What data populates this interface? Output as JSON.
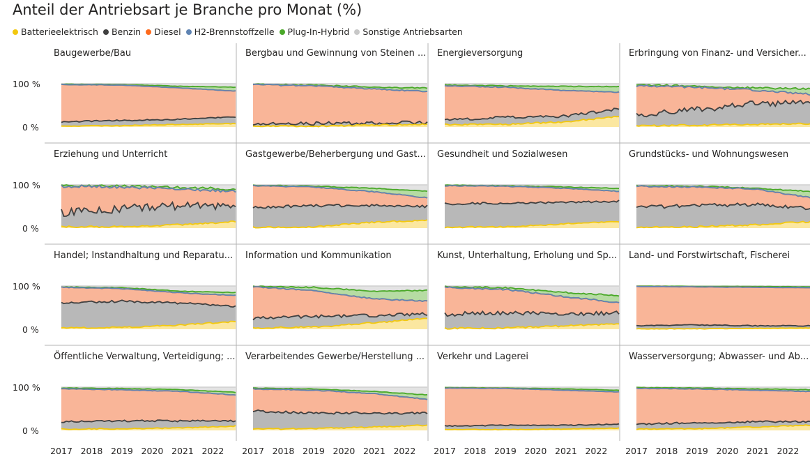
{
  "title": "Anteil der Antriebsart je Branche pro Monat (%)",
  "colors": {
    "Batterieelektrisch": "#F2C80F",
    "Benzin": "#404040",
    "Diesel": "#FE6A1C",
    "H2-Brennstoffzelle": "#5F84B3",
    "Plug-In-Hybrid": "#4AA829",
    "Sonstige Antriebsarten": "#C8C8C8"
  },
  "legend": [
    {
      "label": "Batterieelektrisch",
      "color": "#F2C80F"
    },
    {
      "label": "Benzin",
      "color": "#404040"
    },
    {
      "label": "Diesel",
      "color": "#FE6A1C"
    },
    {
      "label": "H2-Brennstoffzelle",
      "color": "#5F84B3"
    },
    {
      "label": "Plug-In-Hybrid",
      "color": "#4AA829"
    },
    {
      "label": "Sonstige Antriebsarten",
      "color": "#C8C8C8"
    }
  ],
  "y_tick_labels": [
    "100 %",
    "0 %"
  ],
  "x_tick_labels": [
    "2017",
    "2018",
    "2019",
    "2020",
    "2021",
    "2022"
  ],
  "chart_data": {
    "type": "area",
    "subtype": "small-multiples, 100% stacked area by month",
    "title": "Anteil der Antriebsart je Branche pro Monat (%)",
    "series_names": [
      "Batterieelektrisch",
      "Benzin",
      "Diesel",
      "H2-Brennstoffzelle",
      "Plug-In-Hybrid",
      "Sonstige Antriebsarten"
    ],
    "x_range": [
      2017,
      2022.75
    ],
    "x_ticks": [
      2017,
      2018,
      2019,
      2020,
      2021,
      2022
    ],
    "ylim": [
      0,
      100
    ],
    "y_ticks": [
      0,
      100
    ],
    "cumulative_keypoints_note": "Per panel: boundary curves as cumulative percent at years [2017, 2019, 2021, 2022.75]",
    "panels": [
      {
        "name": "Baugewerbe/Bau",
        "batt": [
          2,
          3,
          6,
          8
        ],
        "benzin": [
          12,
          15,
          18,
          23
        ],
        "diesel": [
          98,
          97,
          90,
          83
        ],
        "h2": [
          98,
          97,
          90,
          83
        ],
        "phev": [
          99,
          98,
          94,
          92
        ],
        "noise": 1.5
      },
      {
        "name": "Bergbau und Gewinnung von Steinen ...",
        "batt": [
          2,
          2,
          4,
          6
        ],
        "benzin": [
          7,
          8,
          9,
          10
        ],
        "diesel": [
          98,
          95,
          88,
          82
        ],
        "h2": [
          98,
          95,
          88,
          82
        ],
        "phev": [
          99,
          97,
          92,
          90
        ],
        "noise": 4
      },
      {
        "name": "Energieversorgung",
        "batt": [
          5,
          6,
          12,
          25
        ],
        "benzin": [
          16,
          22,
          25,
          42
        ],
        "diesel": [
          95,
          92,
          84,
          80
        ],
        "h2": [
          95,
          92,
          84,
          80
        ],
        "phev": [
          97,
          95,
          94,
          93
        ],
        "noise": 3
      },
      {
        "name": "Erbringung von Finanz- und Versicher...",
        "batt": [
          3,
          4,
          6,
          8
        ],
        "benzin": [
          28,
          40,
          55,
          55
        ],
        "diesel": [
          95,
          92,
          85,
          75
        ],
        "h2": [
          95,
          92,
          82,
          72
        ],
        "phev": [
          97,
          95,
          90,
          88
        ],
        "noise": 7
      },
      {
        "name": "Erziehung und Unterricht",
        "batt": [
          3,
          3,
          8,
          15
        ],
        "benzin": [
          35,
          45,
          52,
          48
        ],
        "diesel": [
          97,
          95,
          90,
          85
        ],
        "h2": [
          97,
          95,
          90,
          85
        ],
        "phev": [
          99,
          97,
          94,
          90
        ],
        "noise": 9
      },
      {
        "name": "Gastgewerbe/Beherbergung und Gast...",
        "batt": [
          2,
          3,
          14,
          18
        ],
        "benzin": [
          48,
          52,
          52,
          50
        ],
        "diesel": [
          98,
          95,
          84,
          70
        ],
        "h2": [
          98,
          95,
          84,
          70
        ],
        "phev": [
          99,
          97,
          92,
          85
        ],
        "noise": 3
      },
      {
        "name": "Gesundheit und Sozialwesen",
        "batt": [
          2,
          3,
          10,
          15
        ],
        "benzin": [
          56,
          58,
          60,
          62
        ],
        "diesel": [
          98,
          97,
          92,
          85
        ],
        "h2": [
          98,
          97,
          92,
          85
        ],
        "phev": [
          99,
          98,
          95,
          92
        ],
        "noise": 2.5
      },
      {
        "name": "Grundstücks- und Wohnungswesen",
        "batt": [
          2,
          3,
          8,
          15
        ],
        "benzin": [
          48,
          52,
          55,
          45
        ],
        "diesel": [
          97,
          95,
          90,
          70
        ],
        "h2": [
          97,
          95,
          88,
          68
        ],
        "phev": [
          98,
          97,
          92,
          85
        ],
        "noise": 4
      },
      {
        "name": "Handel; Instandhaltung und Reparatu...",
        "batt": [
          3,
          4,
          10,
          18
        ],
        "benzin": [
          60,
          65,
          60,
          52
        ],
        "diesel": [
          97,
          94,
          84,
          78
        ],
        "h2": [
          97,
          94,
          80,
          75
        ],
        "phev": [
          98,
          96,
          88,
          85
        ],
        "noise": 2.5
      },
      {
        "name": "Information und Kommunikation",
        "batt": [
          3,
          5,
          15,
          25
        ],
        "benzin": [
          25,
          30,
          32,
          35
        ],
        "diesel": [
          98,
          90,
          70,
          65
        ],
        "h2": [
          98,
          90,
          70,
          65
        ],
        "phev": [
          99,
          97,
          88,
          90
        ],
        "noise": 4
      },
      {
        "name": "Kunst, Unterhaltung, Erholung und Sp...",
        "batt": [
          2,
          3,
          8,
          12
        ],
        "benzin": [
          35,
          38,
          35,
          38
        ],
        "diesel": [
          97,
          92,
          75,
          62
        ],
        "h2": [
          97,
          92,
          65,
          58
        ],
        "phev": [
          99,
          96,
          85,
          78
        ],
        "noise": 5
      },
      {
        "name": "Land- und Forstwirtschaft, Fischerei",
        "batt": [
          1,
          1,
          2,
          3
        ],
        "benzin": [
          8,
          10,
          8,
          8
        ],
        "diesel": [
          99,
          98,
          97,
          96
        ],
        "h2": [
          99,
          98,
          97,
          96
        ],
        "phev": [
          100,
          99,
          99,
          98
        ],
        "noise": 1
      },
      {
        "name": "Öffentliche Verwaltung, Verteidigung; ...",
        "batt": [
          3,
          4,
          6,
          10
        ],
        "benzin": [
          20,
          22,
          22,
          22
        ],
        "diesel": [
          96,
          94,
          90,
          82
        ],
        "h2": [
          96,
          94,
          90,
          78
        ],
        "phev": [
          98,
          97,
          94,
          88
        ],
        "noise": 2
      },
      {
        "name": "Verarbeitendes Gewerbe/Herstellung ...",
        "batt": [
          3,
          4,
          8,
          12
        ],
        "benzin": [
          45,
          40,
          40,
          40
        ],
        "diesel": [
          96,
          93,
          85,
          72
        ],
        "h2": [
          96,
          93,
          83,
          70
        ],
        "phev": [
          98,
          96,
          90,
          82
        ],
        "noise": 2.5
      },
      {
        "name": "Verkehr und Lagerei",
        "batt": [
          2,
          2,
          3,
          5
        ],
        "benzin": [
          10,
          12,
          12,
          14
        ],
        "diesel": [
          98,
          97,
          93,
          89
        ],
        "h2": [
          98,
          97,
          93,
          89
        ],
        "phev": [
          99,
          98,
          96,
          93
        ],
        "noise": 1.2
      },
      {
        "name": "Wasserversorgung; Abwasser- und Ab...",
        "batt": [
          3,
          4,
          8,
          12
        ],
        "benzin": [
          14,
          18,
          20,
          20
        ],
        "diesel": [
          97,
          96,
          93,
          90
        ],
        "h2": [
          97,
          96,
          93,
          90
        ],
        "phev": [
          99,
          98,
          96,
          94
        ],
        "noise": 2
      }
    ]
  }
}
